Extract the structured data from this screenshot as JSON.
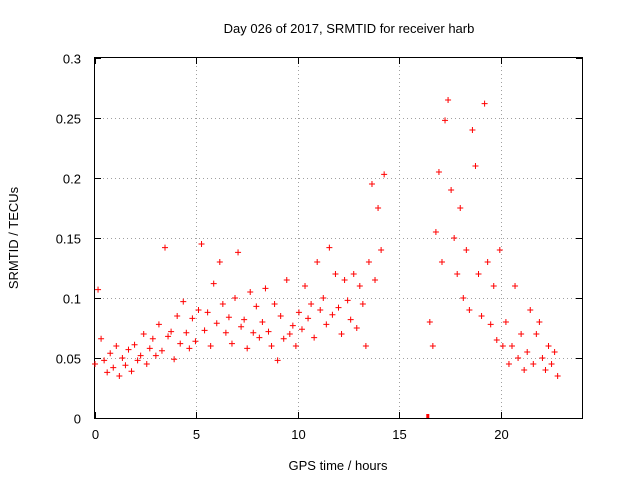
{
  "chart_data": {
    "type": "scatter",
    "title": "Day 026 of 2017, SRMTID for receiver harb",
    "xlabel": "GPS time / hours",
    "ylabel": "SRMTID / TECUs",
    "xlim": [
      0,
      24
    ],
    "ylim": [
      0,
      0.3
    ],
    "x_ticks": [
      0,
      5,
      10,
      15,
      20
    ],
    "x_tick_labels": [
      "0",
      "5",
      "10",
      "15",
      "20"
    ],
    "y_ticks": [
      0,
      0.05,
      0.1,
      0.15,
      0.2,
      0.25,
      0.3
    ],
    "y_tick_labels": [
      "0",
      "0.05",
      "0.1",
      "0.15",
      "0.2",
      "0.25",
      "0.3"
    ],
    "grid": true,
    "marker": "+",
    "colors": {
      "series": "#ff0000",
      "grid": "#a0a0a0",
      "axis": "#000000"
    },
    "series": [
      {
        "name": "SRMTID",
        "x": [
          0.0,
          0.15,
          0.3,
          0.45,
          0.6,
          0.75,
          0.9,
          1.05,
          1.2,
          1.35,
          1.5,
          1.65,
          1.8,
          1.95,
          2.1,
          2.25,
          2.4,
          2.55,
          2.7,
          2.85,
          3.0,
          3.15,
          3.3,
          3.45,
          3.6,
          3.75,
          3.9,
          4.05,
          4.2,
          4.35,
          4.5,
          4.65,
          4.8,
          4.95,
          5.1,
          5.25,
          5.4,
          5.55,
          5.7,
          5.85,
          6.0,
          6.15,
          6.3,
          6.45,
          6.6,
          6.75,
          6.9,
          7.05,
          7.2,
          7.35,
          7.5,
          7.65,
          7.8,
          7.95,
          8.1,
          8.25,
          8.4,
          8.55,
          8.7,
          8.85,
          9.0,
          9.15,
          9.3,
          9.45,
          9.6,
          9.75,
          9.9,
          10.05,
          10.2,
          10.35,
          10.5,
          10.65,
          10.8,
          10.95,
          11.1,
          11.25,
          11.4,
          11.55,
          11.7,
          11.85,
          12.0,
          12.15,
          12.3,
          12.45,
          12.6,
          12.75,
          12.9,
          13.05,
          13.2,
          13.35,
          13.5,
          13.65,
          13.8,
          13.95,
          14.1,
          14.25,
          16.5,
          16.65,
          16.8,
          16.95,
          17.1,
          17.25,
          17.4,
          17.55,
          17.7,
          17.85,
          18.0,
          18.15,
          18.3,
          18.45,
          18.6,
          18.75,
          18.9,
          19.05,
          19.2,
          19.35,
          19.5,
          19.65,
          19.8,
          19.95,
          20.1,
          20.25,
          20.4,
          20.55,
          20.7,
          20.85,
          21.0,
          21.15,
          21.3,
          21.45,
          21.6,
          21.75,
          21.9,
          22.05,
          22.2,
          22.35,
          22.5,
          22.65,
          22.8
        ],
        "y": [
          0.045,
          0.107,
          0.066,
          0.048,
          0.038,
          0.054,
          0.042,
          0.06,
          0.035,
          0.05,
          0.044,
          0.057,
          0.039,
          0.061,
          0.048,
          0.052,
          0.07,
          0.045,
          0.058,
          0.066,
          0.052,
          0.078,
          0.056,
          0.142,
          0.068,
          0.072,
          0.049,
          0.085,
          0.062,
          0.097,
          0.071,
          0.058,
          0.083,
          0.064,
          0.09,
          0.145,
          0.073,
          0.088,
          0.06,
          0.112,
          0.079,
          0.13,
          0.095,
          0.071,
          0.084,
          0.062,
          0.1,
          0.138,
          0.076,
          0.082,
          0.058,
          0.105,
          0.071,
          0.093,
          0.067,
          0.08,
          0.108,
          0.072,
          0.06,
          0.095,
          0.048,
          0.085,
          0.066,
          0.115,
          0.07,
          0.077,
          0.06,
          0.088,
          0.074,
          0.11,
          0.083,
          0.095,
          0.067,
          0.13,
          0.09,
          0.1,
          0.078,
          0.142,
          0.086,
          0.12,
          0.092,
          0.07,
          0.115,
          0.098,
          0.082,
          0.12,
          0.075,
          0.11,
          0.095,
          0.06,
          0.13,
          0.195,
          0.115,
          0.175,
          0.14,
          0.203,
          0.08,
          0.06,
          0.155,
          0.205,
          0.13,
          0.248,
          0.265,
          0.19,
          0.15,
          0.12,
          0.175,
          0.1,
          0.14,
          0.09,
          0.24,
          0.21,
          0.12,
          0.085,
          0.262,
          0.13,
          0.078,
          0.11,
          0.065,
          0.14,
          0.06,
          0.08,
          0.045,
          0.06,
          0.11,
          0.05,
          0.07,
          0.04,
          0.055,
          0.09,
          0.045,
          0.07,
          0.08,
          0.05,
          0.04,
          0.06,
          0.045,
          0.055,
          0.035
        ],
        "outlier_points": [
          {
            "x": 16.4,
            "y": 0.0
          }
        ]
      }
    ]
  }
}
